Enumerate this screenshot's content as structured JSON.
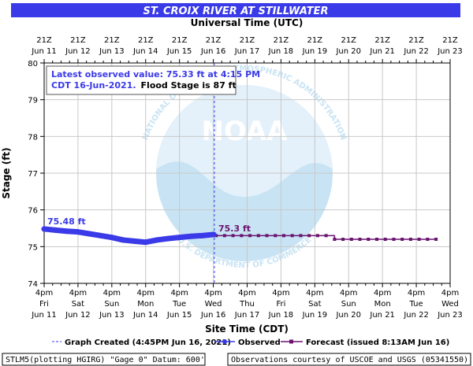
{
  "chart_data": {
    "type": "line",
    "title": "ST. CROIX RIVER AT STILLWATER",
    "top_axis_label": "Universal Time (UTC)",
    "xlabel": "Site Time (CDT)",
    "ylabel": "Stage (ft)",
    "ylim": [
      74,
      80
    ],
    "y_ticks": [
      "74",
      "75",
      "76",
      "77",
      "78",
      "79",
      "80"
    ],
    "grid": true,
    "top_ticks": [
      [
        "21Z",
        "Jun 11"
      ],
      [
        "21Z",
        "Jun 12"
      ],
      [
        "21Z",
        "Jun 13"
      ],
      [
        "21Z",
        "Jun 14"
      ],
      [
        "21Z",
        "Jun 15"
      ],
      [
        "21Z",
        "Jun 16"
      ],
      [
        "21Z",
        "Jun 17"
      ],
      [
        "21Z",
        "Jun 18"
      ],
      [
        "21Z",
        "Jun 19"
      ],
      [
        "21Z",
        "Jun 20"
      ],
      [
        "21Z",
        "Jun 21"
      ],
      [
        "21Z",
        "Jun 22"
      ],
      [
        "21Z",
        "Jun 23"
      ]
    ],
    "bottom_ticks": [
      [
        "4pm",
        "Fri",
        "Jun 11"
      ],
      [
        "4pm",
        "Sat",
        "Jun 12"
      ],
      [
        "4pm",
        "Sun",
        "Jun 13"
      ],
      [
        "4pm",
        "Mon",
        "Jun 14"
      ],
      [
        "4pm",
        "Tue",
        "Jun 15"
      ],
      [
        "4pm",
        "Wed",
        "Jun 16"
      ],
      [
        "4pm",
        "Thu",
        "Jun 17"
      ],
      [
        "4pm",
        "Fri",
        "Jun 18"
      ],
      [
        "4pm",
        "Sat",
        "Jun 19"
      ],
      [
        "4pm",
        "Sun",
        "Jun 20"
      ],
      [
        "4pm",
        "Mon",
        "Jun 21"
      ],
      [
        "4pm",
        "Tue",
        "Jun 22"
      ],
      [
        "4pm",
        "Wed",
        "Jun 23"
      ]
    ],
    "x_range": [
      "2021-06-11T16:00",
      "2021-06-23T16:00"
    ],
    "graph_created": "2021-06-16T16:45",
    "series": [
      {
        "name": "Observed",
        "color": "#3a3ae8",
        "x": [
          "2021-06-11T16:00",
          "2021-06-12T00:00",
          "2021-06-12T08:00",
          "2021-06-12T16:00",
          "2021-06-13T00:00",
          "2021-06-13T08:00",
          "2021-06-13T16:00",
          "2021-06-14T00:00",
          "2021-06-14T08:00",
          "2021-06-14T16:00",
          "2021-06-15T00:00",
          "2021-06-15T08:00",
          "2021-06-15T16:00",
          "2021-06-16T00:00",
          "2021-06-16T08:00",
          "2021-06-16T16:15"
        ],
        "values": [
          75.48,
          75.45,
          75.42,
          75.4,
          75.35,
          75.3,
          75.25,
          75.18,
          75.15,
          75.12,
          75.18,
          75.22,
          75.25,
          75.28,
          75.3,
          75.33
        ]
      },
      {
        "name": "Forecast",
        "color": "#6b1470",
        "x": [
          "2021-06-16T18:00",
          "2021-06-17T00:00",
          "2021-06-17T06:00",
          "2021-06-17T12:00",
          "2021-06-17T18:00",
          "2021-06-18T00:00",
          "2021-06-18T06:00",
          "2021-06-18T12:00",
          "2021-06-18T18:00",
          "2021-06-19T00:00",
          "2021-06-19T06:00",
          "2021-06-19T12:00",
          "2021-06-19T18:00",
          "2021-06-20T00:00",
          "2021-06-20T06:00",
          "2021-06-20T12:00",
          "2021-06-20T18:00",
          "2021-06-21T00:00",
          "2021-06-21T06:00",
          "2021-06-21T12:00",
          "2021-06-21T18:00",
          "2021-06-22T00:00",
          "2021-06-22T06:00",
          "2021-06-22T12:00",
          "2021-06-22T18:00",
          "2021-06-23T00:00",
          "2021-06-23T06:00"
        ],
        "values": [
          75.3,
          75.3,
          75.3,
          75.3,
          75.3,
          75.3,
          75.3,
          75.3,
          75.3,
          75.3,
          75.3,
          75.3,
          75.3,
          75.3,
          75.2,
          75.2,
          75.2,
          75.2,
          75.2,
          75.2,
          75.2,
          75.2,
          75.2,
          75.2,
          75.2,
          75.2,
          75.2
        ]
      }
    ],
    "labels": {
      "start_value": "75.48 ft",
      "last_value": "75.3 ft"
    },
    "annotation": {
      "line1": "Latest observed value: 75.33 ft at 4:15 PM",
      "line2_blue": "CDT 16-Jun-2021.",
      "line2_black": "Flood Stage is 87 ft"
    },
    "legend": {
      "created": "Graph Created (4:45PM Jun 16, 2021)",
      "observed": "Observed",
      "forecast": "Forecast (issued 8:13AM Jun 16)"
    },
    "footer_left": "STLM5(plotting HGIRG) \"Gage 0\" Datum: 600'",
    "footer_right": "Observations courtesy of USCOE and USGS (05341550)",
    "watermark": {
      "logo_text": "NOAA",
      "ring_text": "NATIONAL OCEANIC AND ATMOSPHERIC ADMINISTRATION · U.S. DEPARTMENT OF COMMERCE"
    },
    "colors": {
      "title_bar": "#3a3ae8",
      "observed": "#3a3ae8",
      "forecast": "#6b1470",
      "grid": "#c8c8c8",
      "watermark": "#c6e3f4"
    }
  }
}
